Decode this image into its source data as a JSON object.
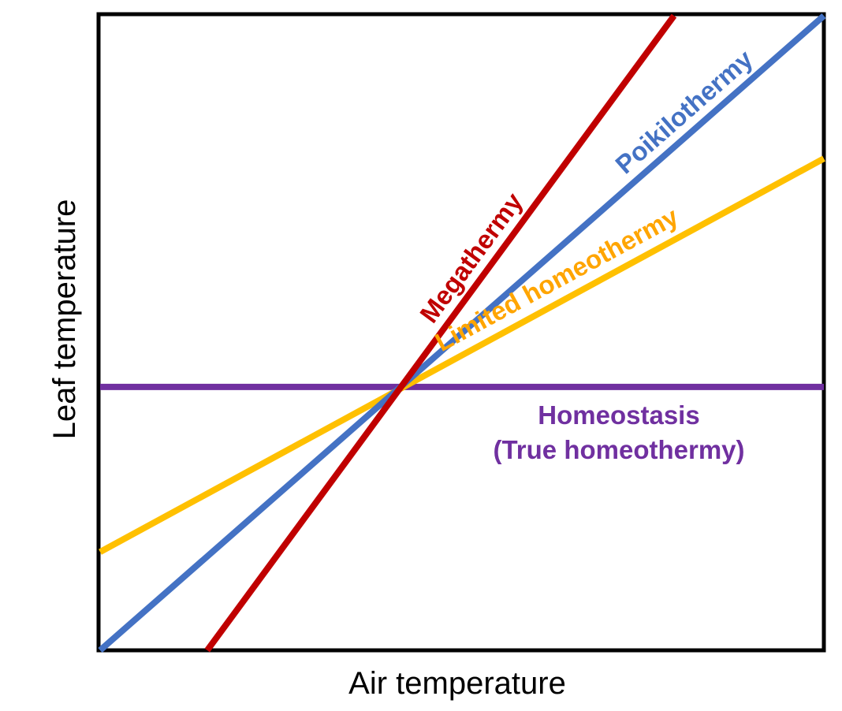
{
  "chart_data": {
    "type": "line",
    "title": "",
    "xlabel": "Air temperature",
    "ylabel": "Leaf temperature",
    "xlim": [
      0,
      1
    ],
    "ylim": [
      0,
      1
    ],
    "grid": false,
    "legend": "none",
    "series": [
      {
        "name": "Megathermy",
        "color": "#c00000",
        "points": [
          [
            0.148,
            0.0
          ],
          [
            0.793,
            1.0
          ]
        ]
      },
      {
        "name": "Poikilothermy",
        "color": "#4472c4",
        "points": [
          [
            0.0,
            0.0
          ],
          [
            1.0,
            1.0
          ]
        ]
      },
      {
        "name": "Limited homeothermy",
        "color": "#ffc000",
        "label_color": "#ffa500",
        "points": [
          [
            0.0,
            0.155
          ],
          [
            1.0,
            0.775
          ]
        ]
      },
      {
        "name": "Homeostasis",
        "name_line2": "(True homeothermy)",
        "color": "#7030a0",
        "points": [
          [
            0.0,
            0.415
          ],
          [
            1.0,
            0.415
          ]
        ]
      }
    ]
  }
}
